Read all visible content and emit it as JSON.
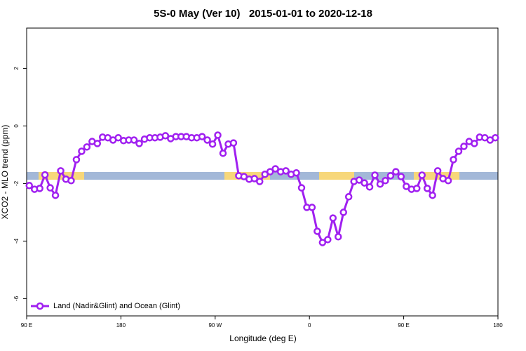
{
  "chart_data": {
    "type": "line",
    "title": "5S-0 May (Ver 10)   2015-01-01 to 2020-12-18",
    "xlabel": "Longitude (deg E)",
    "ylabel": "XCO2 - MLO trend (ppm)",
    "x": [
      92.5,
      97.5,
      102.5,
      107.5,
      112.5,
      117.5,
      122.5,
      127.5,
      132.5,
      137.5,
      142.5,
      147.5,
      152.5,
      157.5,
      162.5,
      167.5,
      172.5,
      177.5,
      182.5,
      187.5,
      192.5,
      197.5,
      202.5,
      207.5,
      212.5,
      217.5,
      222.5,
      227.5,
      232.5,
      237.5,
      242.5,
      247.5,
      252.5,
      257.5,
      262.5,
      267.5,
      272.5,
      277.5,
      282.5,
      287.5,
      292.5,
      297.5,
      302.5,
      307.5,
      312.5,
      317.5,
      322.5,
      327.5,
      332.5,
      337.5,
      342.5,
      347.5,
      352.5,
      357.5,
      362.5,
      367.5,
      372.5,
      377.5,
      382.5,
      387.5,
      392.5,
      397.5,
      402.5,
      407.5,
      412.5,
      417.5,
      422.5,
      427.5,
      432.5,
      437.5,
      442.5,
      447.5,
      452.5,
      457.5,
      462.5,
      467.5,
      472.5,
      477.5,
      482.5,
      487.5,
      492.5,
      497.5,
      502.5,
      507.5,
      512.5,
      517.5,
      522.5,
      527.5,
      532.5,
      537.5
    ],
    "series": [
      {
        "name": "Land (Nadir&Glint) and Ocean (Glint)",
        "color": "#a020f0",
        "values": [
          -2.07,
          -2.2,
          -2.17,
          -1.7,
          -2.15,
          -2.41,
          -1.56,
          -1.85,
          -1.9,
          -1.17,
          -0.88,
          -0.73,
          -0.54,
          -0.61,
          -0.39,
          -0.41,
          -0.49,
          -0.41,
          -0.51,
          -0.49,
          -0.49,
          -0.61,
          -0.46,
          -0.41,
          -0.41,
          -0.39,
          -0.34,
          -0.44,
          -0.37,
          -0.37,
          -0.37,
          -0.41,
          -0.41,
          -0.37,
          -0.49,
          -0.63,
          -0.32,
          -0.95,
          -0.63,
          -0.59,
          -1.73,
          -1.76,
          -1.85,
          -1.83,
          -1.93,
          -1.68,
          -1.59,
          -1.49,
          -1.59,
          -1.56,
          -1.68,
          -1.63,
          -2.15,
          -2.83,
          -2.83,
          -3.66,
          -4.05,
          -3.95,
          -3.2,
          -3.85,
          -3.0,
          -2.46,
          -1.93,
          -1.88,
          -1.98,
          -2.12,
          -1.71,
          -2.02,
          -1.9,
          -1.73,
          -1.59,
          -1.76,
          -2.1,
          -2.2,
          -2.17,
          -1.71,
          -2.17,
          -2.41,
          -1.56,
          -1.83,
          -1.9,
          -1.17,
          -0.88,
          -0.71,
          -0.54,
          -0.61,
          -0.39,
          -0.41,
          -0.49,
          -0.41
        ]
      }
    ],
    "xlim": [
      90,
      540
    ],
    "xticks": [
      {
        "value": 90,
        "label": "90 E"
      },
      180,
      {
        "value": 270,
        "label": "90 W"
      },
      {
        "value": 360,
        "label": "0"
      },
      {
        "value": 450,
        "label": "90 E"
      },
      {
        "value": 540,
        "label": "180"
      }
    ],
    "ylim": [
      -6.6,
      3.4
    ],
    "yticks": [
      2,
      0,
      -2,
      -4,
      -6
    ],
    "legend": "bottom-left"
  }
}
